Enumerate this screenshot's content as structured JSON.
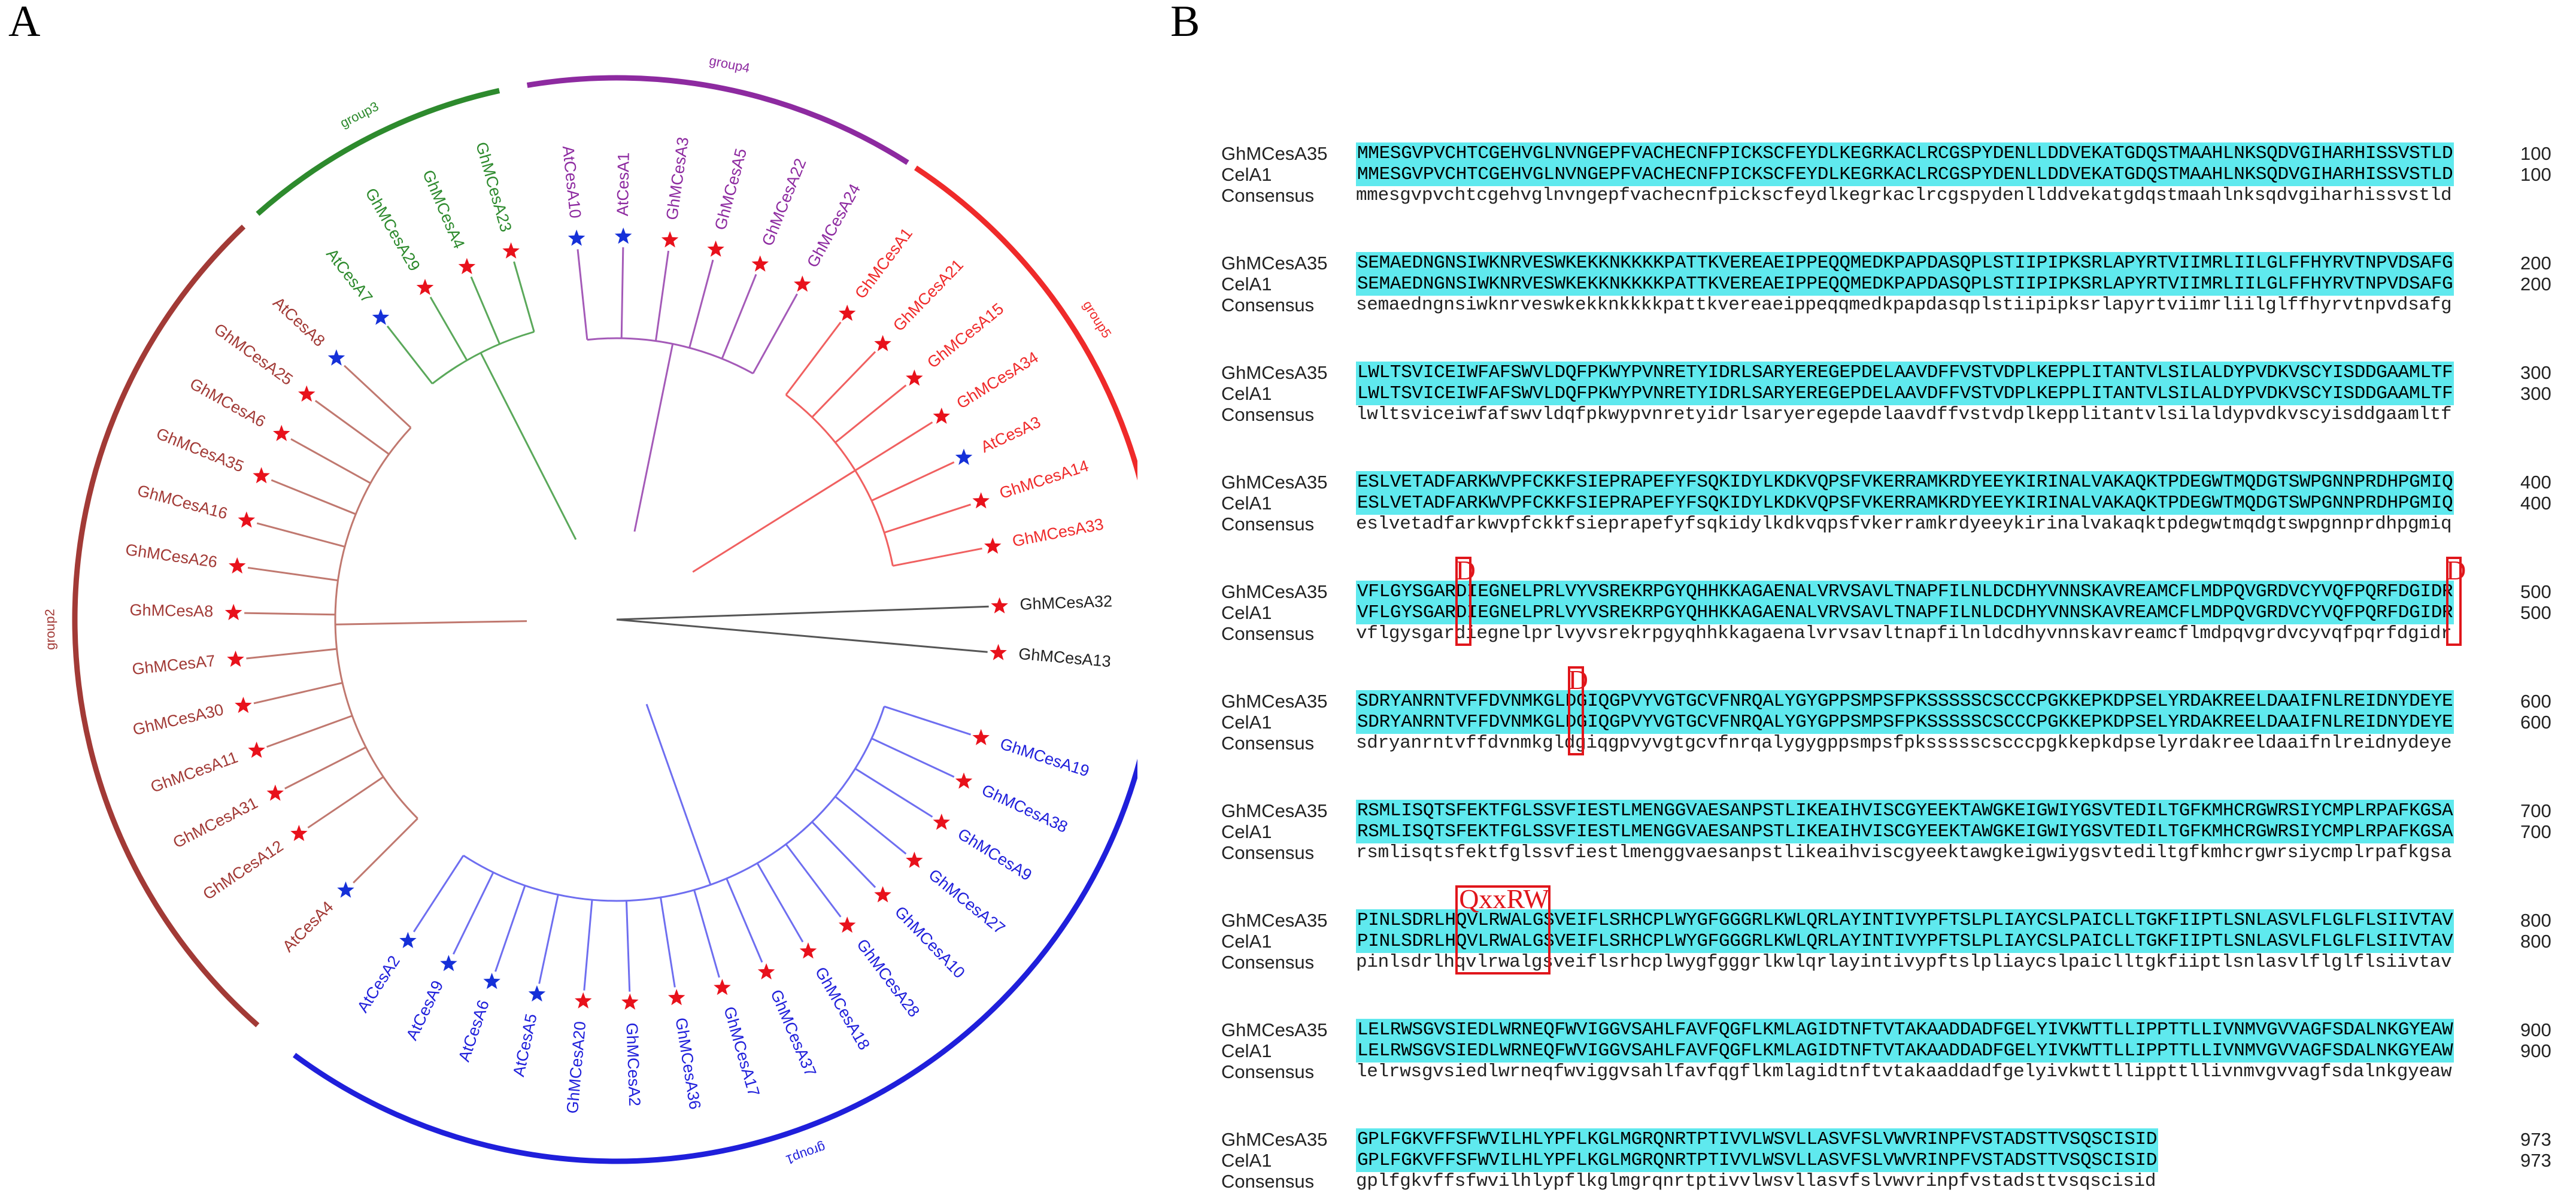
{
  "panel_a_label": "A",
  "panel_b_label": "B",
  "colors": {
    "group1": "#1f1fdb",
    "group2": "#a23a36",
    "group3": "#2d8a2d",
    "group4": "#8d2aa0",
    "group5": "#ef2a2a",
    "outgroup": "#222222",
    "branch_group1": "#6e6ef0",
    "branch_group2": "#c0786f",
    "branch_group3": "#5aa85a",
    "branch_group4": "#a45ab8",
    "branch_group5": "#f06060",
    "star_gh": "#e8111b",
    "star_at": "#1530d8",
    "highlight": "#5fe9ee",
    "motif": "#e0161b"
  },
  "tree": {
    "groups": [
      {
        "id": "group1",
        "label": "group1"
      },
      {
        "id": "group2",
        "label": "group2"
      },
      {
        "id": "group3",
        "label": "group3"
      },
      {
        "id": "group4",
        "label": "group4"
      },
      {
        "id": "group5",
        "label": "group5"
      }
    ],
    "leaves": [
      {
        "label": "GhMCesA32",
        "group": "outgroup",
        "species": "Gh"
      },
      {
        "label": "GhMCesA13",
        "group": "outgroup",
        "species": "Gh"
      },
      {
        "label": "GhMCesA19",
        "group": "group1",
        "species": "Gh"
      },
      {
        "label": "GhMCesA38",
        "group": "group1",
        "species": "Gh"
      },
      {
        "label": "GhMCesA9",
        "group": "group1",
        "species": "Gh"
      },
      {
        "label": "GhMCesA27",
        "group": "group1",
        "species": "Gh"
      },
      {
        "label": "GhMCesA10",
        "group": "group1",
        "species": "Gh"
      },
      {
        "label": "GhMCesA28",
        "group": "group1",
        "species": "Gh"
      },
      {
        "label": "GhMCesA18",
        "group": "group1",
        "species": "Gh"
      },
      {
        "label": "GhMCesA37",
        "group": "group1",
        "species": "Gh"
      },
      {
        "label": "GhMCesA17",
        "group": "group1",
        "species": "Gh"
      },
      {
        "label": "GhMCesA36",
        "group": "group1",
        "species": "Gh"
      },
      {
        "label": "GhMCesA2",
        "group": "group1",
        "species": "Gh"
      },
      {
        "label": "GhMCesA20",
        "group": "group1",
        "species": "Gh"
      },
      {
        "label": "AtCesA5",
        "group": "group1",
        "species": "At"
      },
      {
        "label": "AtCesA6",
        "group": "group1",
        "species": "At"
      },
      {
        "label": "AtCesA9",
        "group": "group1",
        "species": "At"
      },
      {
        "label": "AtCesA2",
        "group": "group1",
        "species": "At"
      },
      {
        "label": "AtCesA4",
        "group": "group2",
        "species": "At"
      },
      {
        "label": "GhMCesA12",
        "group": "group2",
        "species": "Gh"
      },
      {
        "label": "GhMCesA31",
        "group": "group2",
        "species": "Gh"
      },
      {
        "label": "GhMCesA11",
        "group": "group2",
        "species": "Gh"
      },
      {
        "label": "GhMCesA30",
        "group": "group2",
        "species": "Gh"
      },
      {
        "label": "GhMCesA7",
        "group": "group2",
        "species": "Gh"
      },
      {
        "label": "GhMCesA8",
        "group": "group2",
        "species": "Gh"
      },
      {
        "label": "GhMCesA26",
        "group": "group2",
        "species": "Gh"
      },
      {
        "label": "GhMCesA16",
        "group": "group2",
        "species": "Gh"
      },
      {
        "label": "GhMCesA35",
        "group": "group2",
        "species": "Gh"
      },
      {
        "label": "GhMCesA6",
        "group": "group2",
        "species": "Gh"
      },
      {
        "label": "GhMCesA25",
        "group": "group2",
        "species": "Gh"
      },
      {
        "label": "AtCesA8",
        "group": "group2",
        "species": "At"
      },
      {
        "label": "AtCesA7",
        "group": "group3",
        "species": "At"
      },
      {
        "label": "GhMCesA29",
        "group": "group3",
        "species": "Gh"
      },
      {
        "label": "GhMCesA4",
        "group": "group3",
        "species": "Gh"
      },
      {
        "label": "GhMCesA23",
        "group": "group3",
        "species": "Gh"
      },
      {
        "label": "AtCesA10",
        "group": "group4",
        "species": "At"
      },
      {
        "label": "AtCesA1",
        "group": "group4",
        "species": "At"
      },
      {
        "label": "GhMCesA3",
        "group": "group4",
        "species": "Gh"
      },
      {
        "label": "GhMCesA5",
        "group": "group4",
        "species": "Gh"
      },
      {
        "label": "GhMCesA22",
        "group": "group4",
        "species": "Gh"
      },
      {
        "label": "GhMCesA24",
        "group": "group4",
        "species": "Gh"
      },
      {
        "label": "GhMCesA1",
        "group": "group5",
        "species": "Gh"
      },
      {
        "label": "GhMCesA21",
        "group": "group5",
        "species": "Gh"
      },
      {
        "label": "GhMCesA15",
        "group": "group5",
        "species": "Gh"
      },
      {
        "label": "GhMCesA34",
        "group": "group5",
        "species": "Gh"
      },
      {
        "label": "AtCesA3",
        "group": "group5",
        "species": "At"
      },
      {
        "label": "GhMCesA14",
        "group": "group5",
        "species": "Gh"
      },
      {
        "label": "GhMCesA33",
        "group": "group5",
        "species": "Gh"
      }
    ]
  },
  "alignment": {
    "blocks": [
      {
        "rows": [
          {
            "name": "GhMCesA35",
            "seq": "MMESGVPVCHTCGEHVGLNVNGEPFVACHECNFPICKSCFEYDLKEGRKACLRCGSPYDENLLDDVEKATGDQSTMAAHLNKSQDVGIHARHISSVSTLD",
            "num": "100"
          },
          {
            "name": "CelA1",
            "seq": "MMESGVPVCHTCGEHVGLNVNGEPFVACHECNFPICKSCFEYDLKEGRKACLRCGSPYDENLLDDVEKATGDQSTMAAHLNKSQDVGIHARHISSVSTLD",
            "num": "100"
          },
          {
            "name": "Consensus",
            "seq": "mmesgvpvchtcgehvglnvngepfvachecnfpickscfeydlkegrkaclrcgspydenllddvekatgdqstmaahlnksqdvgiharhissvstld",
            "num": ""
          }
        ]
      },
      {
        "rows": [
          {
            "name": "GhMCesA35",
            "seq": "SEMAEDNGNSIWKNRVESWKEKKNKKKKPATTKVEREAEIPPEQQMEDKPAPDASQPLSTIIPIPKSRLAPYRTVIIMRLIILGLFFHYRVTNPVDSAFG",
            "num": "200"
          },
          {
            "name": "CelA1",
            "seq": "SEMAEDNGNSIWKNRVESWKEKKNKKKKPATTKVEREAEIPPEQQMEDKPAPDASQPLSTIIPIPKSRLAPYRTVIIMRLIILGLFFHYRVTNPVDSAFG",
            "num": "200"
          },
          {
            "name": "Consensus",
            "seq": "semaedngnsiwknrveswkekknkkkkpattkvereaeippeqqmedkpapdasqplstiipipksrlapyrtviimrliilglffhyrvtnpvdsafg",
            "num": ""
          }
        ]
      },
      {
        "rows": [
          {
            "name": "GhMCesA35",
            "seq": "LWLTSVICEIWFAFSWVLDQFPKWYPVNRETYIDRLSARYEREGEPDELAAVDFFVSTVDPLKEPPLITANTVLSILALDYPVDKVSCYISDDGAAMLTF",
            "num": "300"
          },
          {
            "name": "CelA1",
            "seq": "LWLTSVICEIWFAFSWVLDQFPKWYPVNRETYIDRLSARYEREGEPDELAAVDFFVSTVDPLKEPPLITANTVLSILALDYPVDKVSCYISDDGAAMLTF",
            "num": "300"
          },
          {
            "name": "Consensus",
            "seq": "lwltsviceiwfafswvldqfpkwypvnretyidrlsaryeregepdelaavdffvstvdplkepplitantvlsilaldypvdkvscyisddgaamltf",
            "num": ""
          }
        ]
      },
      {
        "rows": [
          {
            "name": "GhMCesA35",
            "seq": "ESLVETADFARKWVPFCKKFSIEPRAPEFYFSQKIDYLKDKVQPSFVKERRAMKRDYEEYKIRINALVAKAQKTPDEGWTMQDGTSWPGNNPRDHPGMIQ",
            "num": "400"
          },
          {
            "name": "CelA1",
            "seq": "ESLVETADFARKWVPFCKKFSIEPRAPEFYFSQKIDYLKDKVQPSFVKERRAMKRDYEEYKIRINALVAKAQKTPDEGWTMQDGTSWPGNNPRDHPGMIQ",
            "num": "400"
          },
          {
            "name": "Consensus",
            "seq": "eslvetadfarkwvpfckkfsiepraрefyfsqkidylkdkvqpsfvkerramkrdyeeykirinalvakaqktpdegwtmqdgtswpgnnprdhpgmiq",
            "num": ""
          }
        ]
      },
      {
        "rows": [
          {
            "name": "GhMCesA35",
            "seq": "VFLGYSGARDIEGNELPRLVYVSREKRPGYQHHKKAGAENALVRVSAVLTNAPFILNLDCDHYVNNSKAVREAMCFLMDPQVGRDVCYVQFPQRFDGIDR",
            "num": "500"
          },
          {
            "name": "CelA1",
            "seq": "VFLGYSGARDIEGNELPRLVYVSREKRPGYQHHKKAGAENALVRVSAVLTNAPFILNLDCDHYVNNSKAVREAMCFLMDPQVGRDVCYVQFPQRFDGIDR",
            "num": "500"
          },
          {
            "name": "Consensus",
            "seq": "vflgysgardiegnelprlvyvsrekrpgyqhhkkagaenalvrvsavltnapfilnldcdhyvnnskavreamcflmdpqvgrdvcyvqfpqrfdgidr",
            "num": ""
          }
        ]
      },
      {
        "rows": [
          {
            "name": "GhMCesA35",
            "seq": "SDRYANRNTVFFDVNMKGLDGIQGPVYVGTGCVFNRQALYGYGPPSMPSFPKSSSSSCSCCCPGKKEPKDPSELYRDAKREELDAAIFNLREIDNYDEYE",
            "num": "600"
          },
          {
            "name": "CelA1",
            "seq": "SDRYANRNTVFFDVNMKGLDGIQGPVYVGTGCVFNRQALYGYGPPSMPSFPKSSSSSCSCCCPGKKEPKDPSELYRDAKREELDAAIFNLREIDNYDEYE",
            "num": "600"
          },
          {
            "name": "Consensus",
            "seq": "sdryanrntvffdvnmkgldgiqgpvyvgtgcvfnrqalygygppsmpsfpkssssscscccpgkkepkdpselyrdakreeldaaifnlreidnydeye",
            "num": ""
          }
        ]
      },
      {
        "rows": [
          {
            "name": "GhMCesA35",
            "seq": "RSMLISQTSFEKTFGLSSVFIESTLMENGGVAESANPSTLIKEAIHVISCGYEEKTAWGKEIGWIYGSVTEDILTGFKMHCRGWRSIYCMPLRPAFKGSA",
            "num": "700"
          },
          {
            "name": "CelA1",
            "seq": "RSMLISQTSFEKTFGLSSVFIESTLMENGGVAESANPSTLIKEAIHVISCGYEEKTAWGKEIGWIYGSVTEDILTGFKMHCRGWRSIYCMPLRPAFKGSA",
            "num": "700"
          },
          {
            "name": "Consensus",
            "seq": "rsmlisqtsfektfglssvfiestlmenggvaesanpstlikeaihviscgyeektawgkeigwiygsvtediltgfkmhcrgwrsiycmplrpafkgsa",
            "num": ""
          }
        ]
      },
      {
        "rows": [
          {
            "name": "GhMCesA35",
            "seq": "PINLSDRLHQVLRWALGSVEIFLSRHCPLWYGFGGGRLKWLQRLAYINTIVYPFTSLPLIAYCSLPAICLLTGKFIIPTLSNLASVLFLGLFLSIIVTAV",
            "num": "800"
          },
          {
            "name": "CelA1",
            "seq": "PINLSDRLHQVLRWALGSVEIFLSRHCPLWYGFGGGRLKWLQRLAYINTIVYPFTSLPLIAYCSLPAICLLTGKFIIPTLSNLASVLFLGLFLSIIVTAV",
            "num": "800"
          },
          {
            "name": "Consensus",
            "seq": "pinlsdrlhqvlrwalgsveiflsrhcplwygfgggrlkwlqrlayintivypftslpliaycslpaiclltgkfiiptlsnlasvlflglflsiivtav",
            "num": ""
          }
        ]
      },
      {
        "rows": [
          {
            "name": "GhMCesA35",
            "seq": "LELRWSGVSIEDLWRNEQFWVIGGVSAHLFAVFQGFLKMLAGIDTNFTVTAKAADDADFGELYIVKWTTLLIPPTTLLIVNMVGVVAGFSDALNKGYEAW",
            "num": "900"
          },
          {
            "name": "CelA1",
            "seq": "LELRWSGVSIEDLWRNEQFWVIGGVSAHLFAVFQGFLKMLAGIDTNFTVTAKAADDADFGELYIVKWTTLLIPPTTLLIVNMVGVVAGFSDALNKGYEAW",
            "num": "900"
          },
          {
            "name": "Consensus",
            "seq": "lelrwsgvsiedlwrneqfwviggvsahlfavfqgflkmlagidtnftvtakaaddadfgelyivkwttllippttllivnmvgvvagfsdalnkgyeaw",
            "num": ""
          }
        ]
      },
      {
        "rows": [
          {
            "name": "GhMCesA35",
            "seq": "GPLFGKVFFSFWVILHLYPFLKGLMGRQNRTPTIVVLWSVLLASVFSLVWVRINPFVSTADSTTVSQSCISID",
            "num": "973"
          },
          {
            "name": "CelA1",
            "seq": "GPLFGKVFFSFWVILHLYPFLKGLMGRQNRTPTIVVLWSVLLASVFSLVWVRINPFVSTADSTTVSQSCISID",
            "num": "973"
          },
          {
            "name": "Consensus",
            "seq": "gplfgkvffsfwvilhlypflkglmgrqnrtptivvlwsvllasvfslvwvrinpfvstadsttvsqscisid",
            "num": ""
          }
        ]
      }
    ],
    "motifs": [
      {
        "label": "D",
        "block": 4,
        "start": 9,
        "end": 10
      },
      {
        "label": "D",
        "block": 4,
        "start": 97,
        "end": 98
      },
      {
        "label": "D",
        "block": 5,
        "start": 19,
        "end": 20
      },
      {
        "label": "QxxRW",
        "block": 7,
        "start": 9,
        "end": 17
      }
    ]
  }
}
